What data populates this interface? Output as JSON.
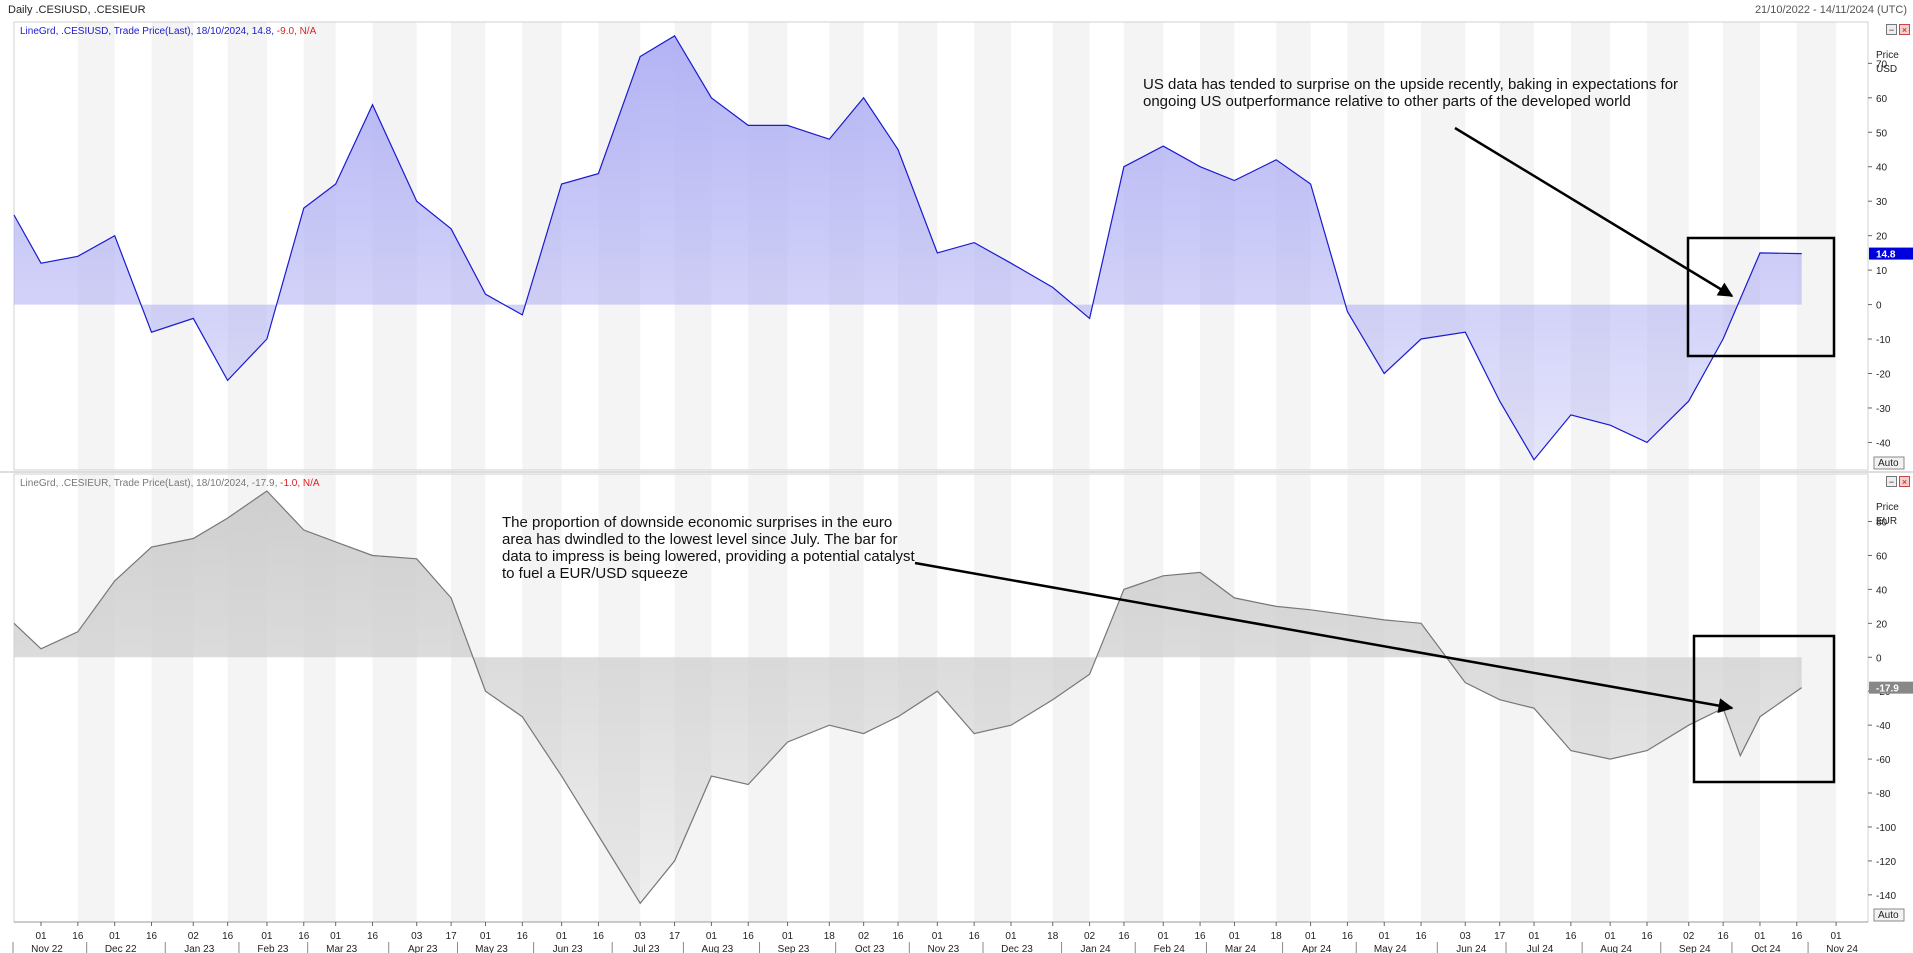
{
  "header": {
    "title": "Daily .CESIUSD, .CESIEUR",
    "date_range": "21/10/2022 - 14/11/2024 (UTC)"
  },
  "colors": {
    "usd_line": "#1a1ad0",
    "usd_fill": "#b3b3f5",
    "eur_line": "#777777",
    "eur_fill": "#cfcfcf",
    "red": "#e02020",
    "highlight": "#0000dd"
  },
  "chart_data": [
    {
      "type": "area",
      "legend": {
        "prefix": "LineGrd, .CESIUSD, Trade Price(Last), 18/10/2024, 14.8, ",
        "change": "-9.0, N/A"
      },
      "price_label": "Price",
      "unit": "USD",
      "ylim": [
        -48,
        82
      ],
      "yticks": [
        -40,
        -30,
        -20,
        -10,
        0,
        10,
        20,
        30,
        40,
        50,
        60,
        70
      ],
      "last_value_label": "14.8",
      "last_value": 14.8,
      "auto_label": "Auto",
      "x": [
        "2022-10-21",
        "2022-11-01",
        "2022-11-16",
        "2022-12-01",
        "2022-12-16",
        "2023-01-02",
        "2023-01-16",
        "2023-02-01",
        "2023-02-16",
        "2023-03-01",
        "2023-03-16",
        "2023-04-03",
        "2023-04-17",
        "2023-05-01",
        "2023-05-16",
        "2023-06-01",
        "2023-06-16",
        "2023-07-03",
        "2023-07-17",
        "2023-08-01",
        "2023-08-16",
        "2023-09-01",
        "2023-09-18",
        "2023-10-02",
        "2023-10-16",
        "2023-11-01",
        "2023-11-16",
        "2023-12-01",
        "2023-12-18",
        "2024-01-02",
        "2024-01-16",
        "2024-02-01",
        "2024-02-16",
        "2024-03-01",
        "2024-03-18",
        "2024-04-01",
        "2024-04-16",
        "2024-05-01",
        "2024-05-16",
        "2024-06-03",
        "2024-06-17",
        "2024-07-01",
        "2024-07-16",
        "2024-08-01",
        "2024-08-16",
        "2024-09-02",
        "2024-09-16",
        "2024-10-01",
        "2024-10-18"
      ],
      "values": [
        26,
        12,
        14,
        20,
        -8,
        -4,
        -22,
        -10,
        28,
        35,
        58,
        30,
        22,
        3,
        -3,
        35,
        38,
        72,
        78,
        60,
        52,
        52,
        48,
        60,
        45,
        15,
        18,
        12,
        5,
        -4,
        40,
        46,
        40,
        36,
        42,
        35,
        -2,
        -20,
        -10,
        -8,
        -28,
        -45,
        -32,
        -35,
        -40,
        -28,
        -10,
        15,
        14.8
      ],
      "annotation": "US data has tended to surprise on the upside recently, baking in expectations for ongoing US outperformance relative to other parts of the developed world"
    },
    {
      "type": "area",
      "legend": {
        "prefix": "LineGrd, .CESIEUR, Trade Price(Last), 18/10/2024, -17.9, ",
        "change": "-1.0, N/A"
      },
      "price_label": "Price",
      "unit": "EUR",
      "ylim": [
        -156,
        108
      ],
      "yticks": [
        -140,
        -120,
        -100,
        -80,
        -60,
        -40,
        -20,
        0,
        20,
        40,
        60,
        80
      ],
      "last_value_label": "-17.9",
      "last_value": -17.9,
      "auto_label": "Auto",
      "x": [
        "2022-10-21",
        "2022-11-01",
        "2022-11-16",
        "2022-12-01",
        "2022-12-16",
        "2023-01-02",
        "2023-01-16",
        "2023-02-01",
        "2023-02-16",
        "2023-03-01",
        "2023-03-16",
        "2023-04-03",
        "2023-04-17",
        "2023-05-01",
        "2023-05-16",
        "2023-06-01",
        "2023-06-16",
        "2023-07-03",
        "2023-07-17",
        "2023-08-01",
        "2023-08-16",
        "2023-09-01",
        "2023-09-18",
        "2023-10-02",
        "2023-10-16",
        "2023-11-01",
        "2023-11-16",
        "2023-12-01",
        "2023-12-18",
        "2024-01-02",
        "2024-01-16",
        "2024-02-01",
        "2024-02-16",
        "2024-03-01",
        "2024-03-18",
        "2024-04-01",
        "2024-04-16",
        "2024-05-01",
        "2024-05-16",
        "2024-06-03",
        "2024-06-17",
        "2024-07-01",
        "2024-07-16",
        "2024-08-01",
        "2024-08-16",
        "2024-09-02",
        "2024-09-16",
        "2024-09-23",
        "2024-10-01",
        "2024-10-18"
      ],
      "values": [
        20,
        5,
        15,
        45,
        65,
        70,
        82,
        98,
        75,
        68,
        60,
        58,
        35,
        -20,
        -35,
        -70,
        -105,
        -145,
        -120,
        -70,
        -75,
        -50,
        -40,
        -45,
        -35,
        -20,
        -45,
        -40,
        -25,
        -10,
        40,
        48,
        50,
        35,
        30,
        28,
        25,
        22,
        20,
        -15,
        -25,
        -30,
        -55,
        -60,
        -55,
        -40,
        -30,
        -58,
        -35,
        -17.9
      ],
      "annotation": "The proportion of downside economic surprises in the euro area has dwindled to the lowest level since July. The bar for data to impress is being lowered, providing a potential catalyst to fuel a EUR/USD squeeze"
    }
  ],
  "x_axis": {
    "day_ticks": [
      {
        "d": "2022-11-01",
        "t": "01"
      },
      {
        "d": "2022-11-16",
        "t": "16"
      },
      {
        "d": "2022-12-01",
        "t": "01"
      },
      {
        "d": "2022-12-16",
        "t": "16"
      },
      {
        "d": "2023-01-02",
        "t": "02"
      },
      {
        "d": "2023-01-16",
        "t": "16"
      },
      {
        "d": "2023-02-01",
        "t": "01"
      },
      {
        "d": "2023-02-16",
        "t": "16"
      },
      {
        "d": "2023-03-01",
        "t": "01"
      },
      {
        "d": "2023-03-16",
        "t": "16"
      },
      {
        "d": "2023-04-03",
        "t": "03"
      },
      {
        "d": "2023-04-17",
        "t": "17"
      },
      {
        "d": "2023-05-01",
        "t": "01"
      },
      {
        "d": "2023-05-16",
        "t": "16"
      },
      {
        "d": "2023-06-01",
        "t": "01"
      },
      {
        "d": "2023-06-16",
        "t": "16"
      },
      {
        "d": "2023-07-03",
        "t": "03"
      },
      {
        "d": "2023-07-17",
        "t": "17"
      },
      {
        "d": "2023-08-01",
        "t": "01"
      },
      {
        "d": "2023-08-16",
        "t": "16"
      },
      {
        "d": "2023-09-01",
        "t": "01"
      },
      {
        "d": "2023-09-18",
        "t": "18"
      },
      {
        "d": "2023-10-02",
        "t": "02"
      },
      {
        "d": "2023-10-16",
        "t": "16"
      },
      {
        "d": "2023-11-01",
        "t": "01"
      },
      {
        "d": "2023-11-16",
        "t": "16"
      },
      {
        "d": "2023-12-01",
        "t": "01"
      },
      {
        "d": "2023-12-18",
        "t": "18"
      },
      {
        "d": "2024-01-02",
        "t": "02"
      },
      {
        "d": "2024-01-16",
        "t": "16"
      },
      {
        "d": "2024-02-01",
        "t": "01"
      },
      {
        "d": "2024-02-16",
        "t": "16"
      },
      {
        "d": "2024-03-01",
        "t": "01"
      },
      {
        "d": "2024-03-18",
        "t": "18"
      },
      {
        "d": "2024-04-01",
        "t": "01"
      },
      {
        "d": "2024-04-16",
        "t": "16"
      },
      {
        "d": "2024-05-01",
        "t": "01"
      },
      {
        "d": "2024-05-16",
        "t": "16"
      },
      {
        "d": "2024-06-03",
        "t": "03"
      },
      {
        "d": "2024-06-17",
        "t": "17"
      },
      {
        "d": "2024-07-01",
        "t": "01"
      },
      {
        "d": "2024-07-16",
        "t": "16"
      },
      {
        "d": "2024-08-01",
        "t": "01"
      },
      {
        "d": "2024-08-16",
        "t": "16"
      },
      {
        "d": "2024-09-02",
        "t": "02"
      },
      {
        "d": "2024-09-16",
        "t": "16"
      },
      {
        "d": "2024-10-01",
        "t": "01"
      },
      {
        "d": "2024-10-16",
        "t": "16"
      },
      {
        "d": "2024-11-01",
        "t": "01"
      }
    ],
    "month_labels": [
      {
        "d": "2022-11-01",
        "t": "Nov 22"
      },
      {
        "d": "2022-12-01",
        "t": "Dec 22"
      },
      {
        "d": "2023-01-02",
        "t": "Jan 23"
      },
      {
        "d": "2023-02-01",
        "t": "Feb 23"
      },
      {
        "d": "2023-03-01",
        "t": "Mar 23"
      },
      {
        "d": "2023-04-03",
        "t": "Apr 23"
      },
      {
        "d": "2023-05-01",
        "t": "May 23"
      },
      {
        "d": "2023-06-01",
        "t": "Jun 23"
      },
      {
        "d": "2023-07-03",
        "t": "Jul 23"
      },
      {
        "d": "2023-08-01",
        "t": "Aug 23"
      },
      {
        "d": "2023-09-01",
        "t": "Sep 23"
      },
      {
        "d": "2023-10-02",
        "t": "Oct 23"
      },
      {
        "d": "2023-11-01",
        "t": "Nov 23"
      },
      {
        "d": "2023-12-01",
        "t": "Dec 23"
      },
      {
        "d": "2024-01-02",
        "t": "Jan 24"
      },
      {
        "d": "2024-02-01",
        "t": "Feb 24"
      },
      {
        "d": "2024-03-01",
        "t": "Mar 24"
      },
      {
        "d": "2024-04-01",
        "t": "Apr 24"
      },
      {
        "d": "2024-05-01",
        "t": "May 24"
      },
      {
        "d": "2024-06-03",
        "t": "Jun 24"
      },
      {
        "d": "2024-07-01",
        "t": "Jul 24"
      },
      {
        "d": "2024-08-01",
        "t": "Aug 24"
      },
      {
        "d": "2024-09-02",
        "t": "Sep 24"
      },
      {
        "d": "2024-10-01",
        "t": "Oct 24"
      },
      {
        "d": "2024-11-01",
        "t": "Nov 24"
      }
    ],
    "range": [
      "2022-10-21",
      "2024-11-14"
    ]
  }
}
